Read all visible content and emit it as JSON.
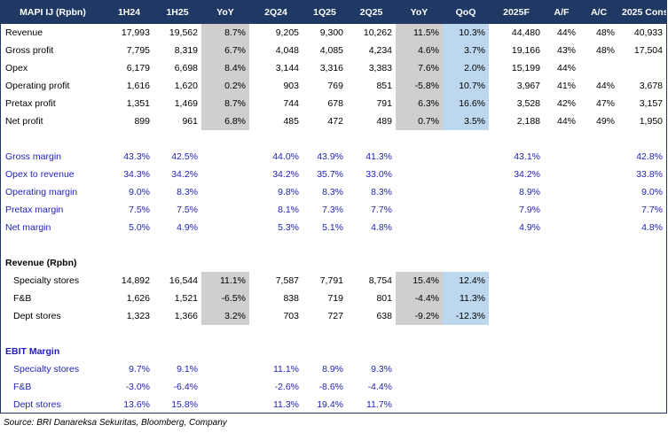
{
  "headers": [
    "MAPI IJ (Rpbn)",
    "1H24",
    "1H25",
    "YoY",
    "2Q24",
    "1Q25",
    "2Q25",
    "YoY",
    "QoQ",
    "2025F",
    "A/F",
    "A/C",
    "2025 Cons"
  ],
  "financials": [
    {
      "label": "Revenue",
      "values": [
        "17,993",
        "19,562",
        "8.7%",
        "9,205",
        "9,300",
        "10,262",
        "11.5%",
        "10.3%",
        "44,480",
        "44%",
        "48%",
        "40,933"
      ]
    },
    {
      "label": "Gross profit",
      "values": [
        "7,795",
        "8,319",
        "6.7%",
        "4,048",
        "4,085",
        "4,234",
        "4.6%",
        "3.7%",
        "19,166",
        "43%",
        "48%",
        "17,504"
      ]
    },
    {
      "label": "Opex",
      "values": [
        "6,179",
        "6,698",
        "8.4%",
        "3,144",
        "3,316",
        "3,383",
        "7.6%",
        "2.0%",
        "15,199",
        "44%",
        "",
        ""
      ]
    },
    {
      "label": "Operating profit",
      "values": [
        "1,616",
        "1,620",
        "0.2%",
        "903",
        "769",
        "851",
        "-5.8%",
        "10.7%",
        "3,967",
        "41%",
        "44%",
        "3,678"
      ]
    },
    {
      "label": "Pretax profit",
      "values": [
        "1,351",
        "1,469",
        "8.7%",
        "744",
        "678",
        "791",
        "6.3%",
        "16.6%",
        "3,528",
        "42%",
        "47%",
        "3,157"
      ]
    },
    {
      "label": "Net profit",
      "values": [
        "899",
        "961",
        "6.8%",
        "485",
        "472",
        "489",
        "0.7%",
        "3.5%",
        "2,188",
        "44%",
        "49%",
        "1,950"
      ]
    }
  ],
  "margins": [
    {
      "label": "Gross margin",
      "values": [
        "43.3%",
        "42.5%",
        "",
        "44.0%",
        "43.9%",
        "41.3%",
        "",
        "",
        "43.1%",
        "",
        "",
        "42.8%"
      ]
    },
    {
      "label": "Opex to revenue",
      "values": [
        "34.3%",
        "34.2%",
        "",
        "34.2%",
        "35.7%",
        "33.0%",
        "",
        "",
        "34.2%",
        "",
        "",
        "33.8%"
      ]
    },
    {
      "label": "Operating margin",
      "values": [
        "9.0%",
        "8.3%",
        "",
        "9.8%",
        "8.3%",
        "8.3%",
        "",
        "",
        "8.9%",
        "",
        "",
        "9.0%"
      ]
    },
    {
      "label": "Pretax margin",
      "values": [
        "7.5%",
        "7.5%",
        "",
        "8.1%",
        "7.3%",
        "7.7%",
        "",
        "",
        "7.9%",
        "",
        "",
        "7.7%"
      ]
    },
    {
      "label": "Net margin",
      "values": [
        "5.0%",
        "4.9%",
        "",
        "5.3%",
        "5.1%",
        "4.8%",
        "",
        "",
        "4.9%",
        "",
        "",
        "4.8%"
      ]
    }
  ],
  "revenue_section": {
    "title": "Revenue (Rpbn)",
    "rows": [
      {
        "label": "Specialty stores",
        "values": [
          "14,892",
          "16,544",
          "11.1%",
          "7,587",
          "7,791",
          "8,754",
          "15.4%",
          "12.4%"
        ]
      },
      {
        "label": "F&B",
        "values": [
          "1,626",
          "1,521",
          "-6.5%",
          "838",
          "719",
          "801",
          "-4.4%",
          "11.3%"
        ]
      },
      {
        "label": "Dept stores",
        "values": [
          "1,323",
          "1,366",
          "3.2%",
          "703",
          "727",
          "638",
          "-9.2%",
          "-12.3%"
        ]
      }
    ]
  },
  "ebit_section": {
    "title": "EBIT Margin",
    "rows": [
      {
        "label": "Specialty stores",
        "values": [
          "9.7%",
          "9.1%",
          "",
          "11.1%",
          "8.9%",
          "9.3%"
        ]
      },
      {
        "label": "F&B",
        "values": [
          "-3.0%",
          "-6.4%",
          "",
          "-2.6%",
          "-8.6%",
          "-4.4%"
        ]
      },
      {
        "label": "Dept stores",
        "values": [
          "13.6%",
          "15.8%",
          "",
          "11.3%",
          "19.4%",
          "11.7%"
        ]
      }
    ]
  },
  "source": "Source: BRI Danareksa Sekuritas, Bloomberg, Company",
  "colors": {
    "header_bg": "#1f3864",
    "grey_fill": "#d0cece",
    "blue_fill": "#bdd7ee",
    "blue_text": "#1f1fb8"
  }
}
